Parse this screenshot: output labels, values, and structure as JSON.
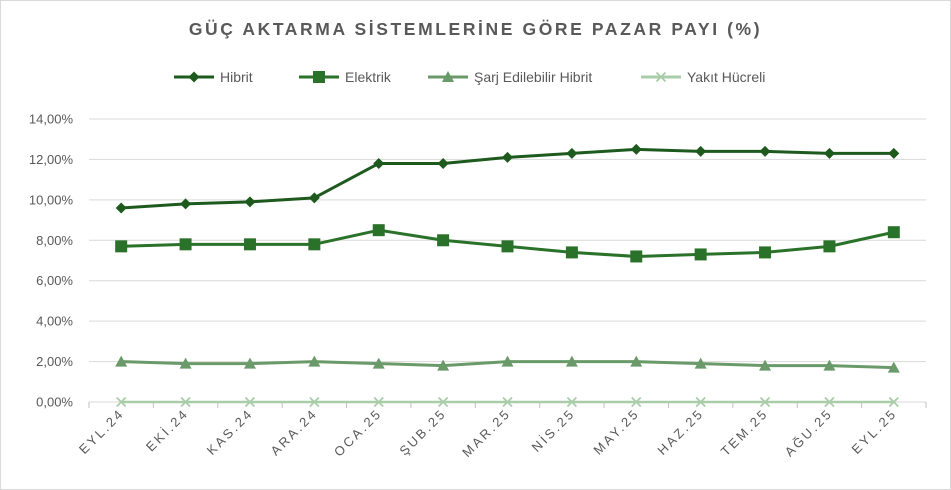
{
  "chart_data": {
    "type": "line",
    "title": "GÜÇ AKTARMA SİSTEMLERİNE GÖRE PAZAR PAYI (%)",
    "categories": [
      "EYL.24",
      "EKİ.24",
      "KAS.24",
      "ARA.24",
      "OCA.25",
      "ŞUB.25",
      "MAR.25",
      "NİS.25",
      "MAY.25",
      "HAZ.25",
      "TEM.25",
      "AĞU.25",
      "EYL.25"
    ],
    "ylim": [
      0,
      14
    ],
    "ytick_values": [
      0,
      2,
      4,
      6,
      8,
      10,
      12,
      14
    ],
    "ytick_labels": [
      "0,00%",
      "2,00%",
      "4,00%",
      "6,00%",
      "8,00%",
      "10,00%",
      "12,00%",
      "14,00%"
    ],
    "grid": "horizontal",
    "legend_position": "top",
    "series": [
      {
        "name": "Hibrit",
        "marker": "diamond",
        "color": "#1e5a1e",
        "values": [
          9.6,
          9.8,
          9.9,
          10.1,
          11.8,
          11.8,
          12.1,
          12.3,
          12.5,
          12.4,
          12.4,
          12.3,
          12.3
        ]
      },
      {
        "name": "Elektrik",
        "marker": "square",
        "color": "#2a722a",
        "values": [
          7.7,
          7.8,
          7.8,
          7.8,
          8.5,
          8.0,
          7.7,
          7.4,
          7.2,
          7.3,
          7.4,
          7.7,
          8.4
        ]
      },
      {
        "name": "Şarj Edilebilir Hibrit",
        "marker": "triangle",
        "color": "#6a9a6a",
        "values": [
          2.0,
          1.9,
          1.9,
          2.0,
          1.9,
          1.8,
          2.0,
          2.0,
          2.0,
          1.9,
          1.8,
          1.8,
          1.7
        ]
      },
      {
        "name": "Yakıt Hücreli",
        "marker": "x",
        "color": "#a9cca9",
        "values": [
          0,
          0,
          0,
          0,
          0,
          0,
          0,
          0,
          0,
          0,
          0,
          0,
          0
        ]
      }
    ]
  }
}
